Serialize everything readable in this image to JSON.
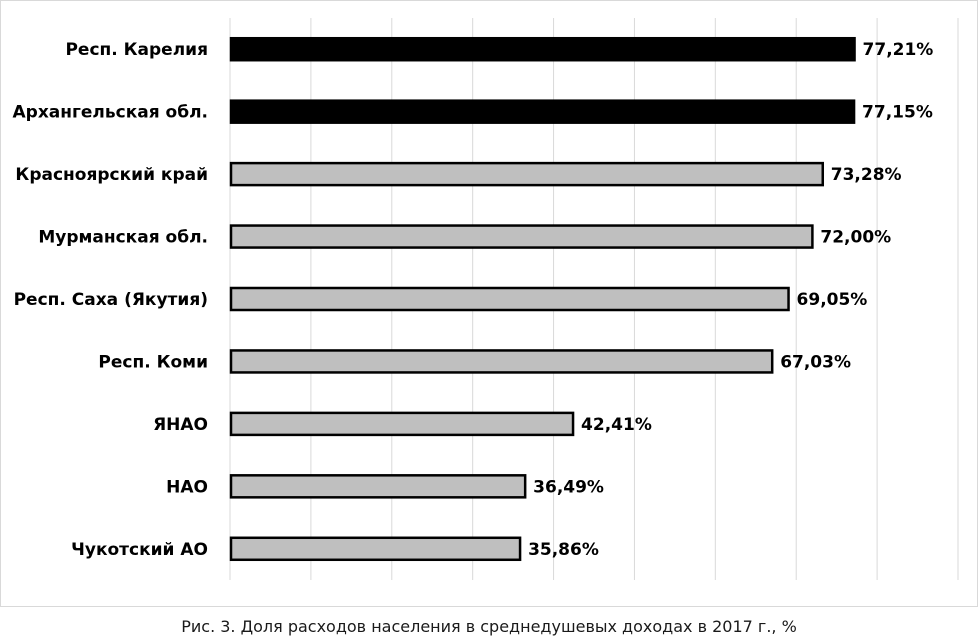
{
  "caption": "Рис. 3. Доля расходов населения в среднедушевых доходах в 2017 г., %",
  "chart_data": {
    "type": "bar",
    "orientation": "horizontal",
    "categories": [
      "Респ. Карелия",
      "Архангельская обл.",
      "Красноярский край",
      "Мурманская обл.",
      "Респ. Саха (Якутия)",
      "Респ. Коми",
      "ЯНАО",
      "НАО",
      "Чукотский АО"
    ],
    "values": [
      77.21,
      77.15,
      73.28,
      72.0,
      69.05,
      67.03,
      42.41,
      36.49,
      35.86
    ],
    "value_labels": [
      "77,21%",
      "77,15%",
      "73,28%",
      "72,00%",
      "69,05%",
      "67,03%",
      "42,41%",
      "36,49%",
      "35,86%"
    ],
    "highlighted": [
      true,
      true,
      false,
      false,
      false,
      false,
      false,
      false,
      false
    ],
    "colors": {
      "highlight": "#000000",
      "normal": "#bfbfbf",
      "stroke": "#000000",
      "grid": "#d9d9d9",
      "border": "#d9d9d9"
    },
    "xlim": [
      0,
      90
    ],
    "grid": true,
    "legend": "none"
  }
}
